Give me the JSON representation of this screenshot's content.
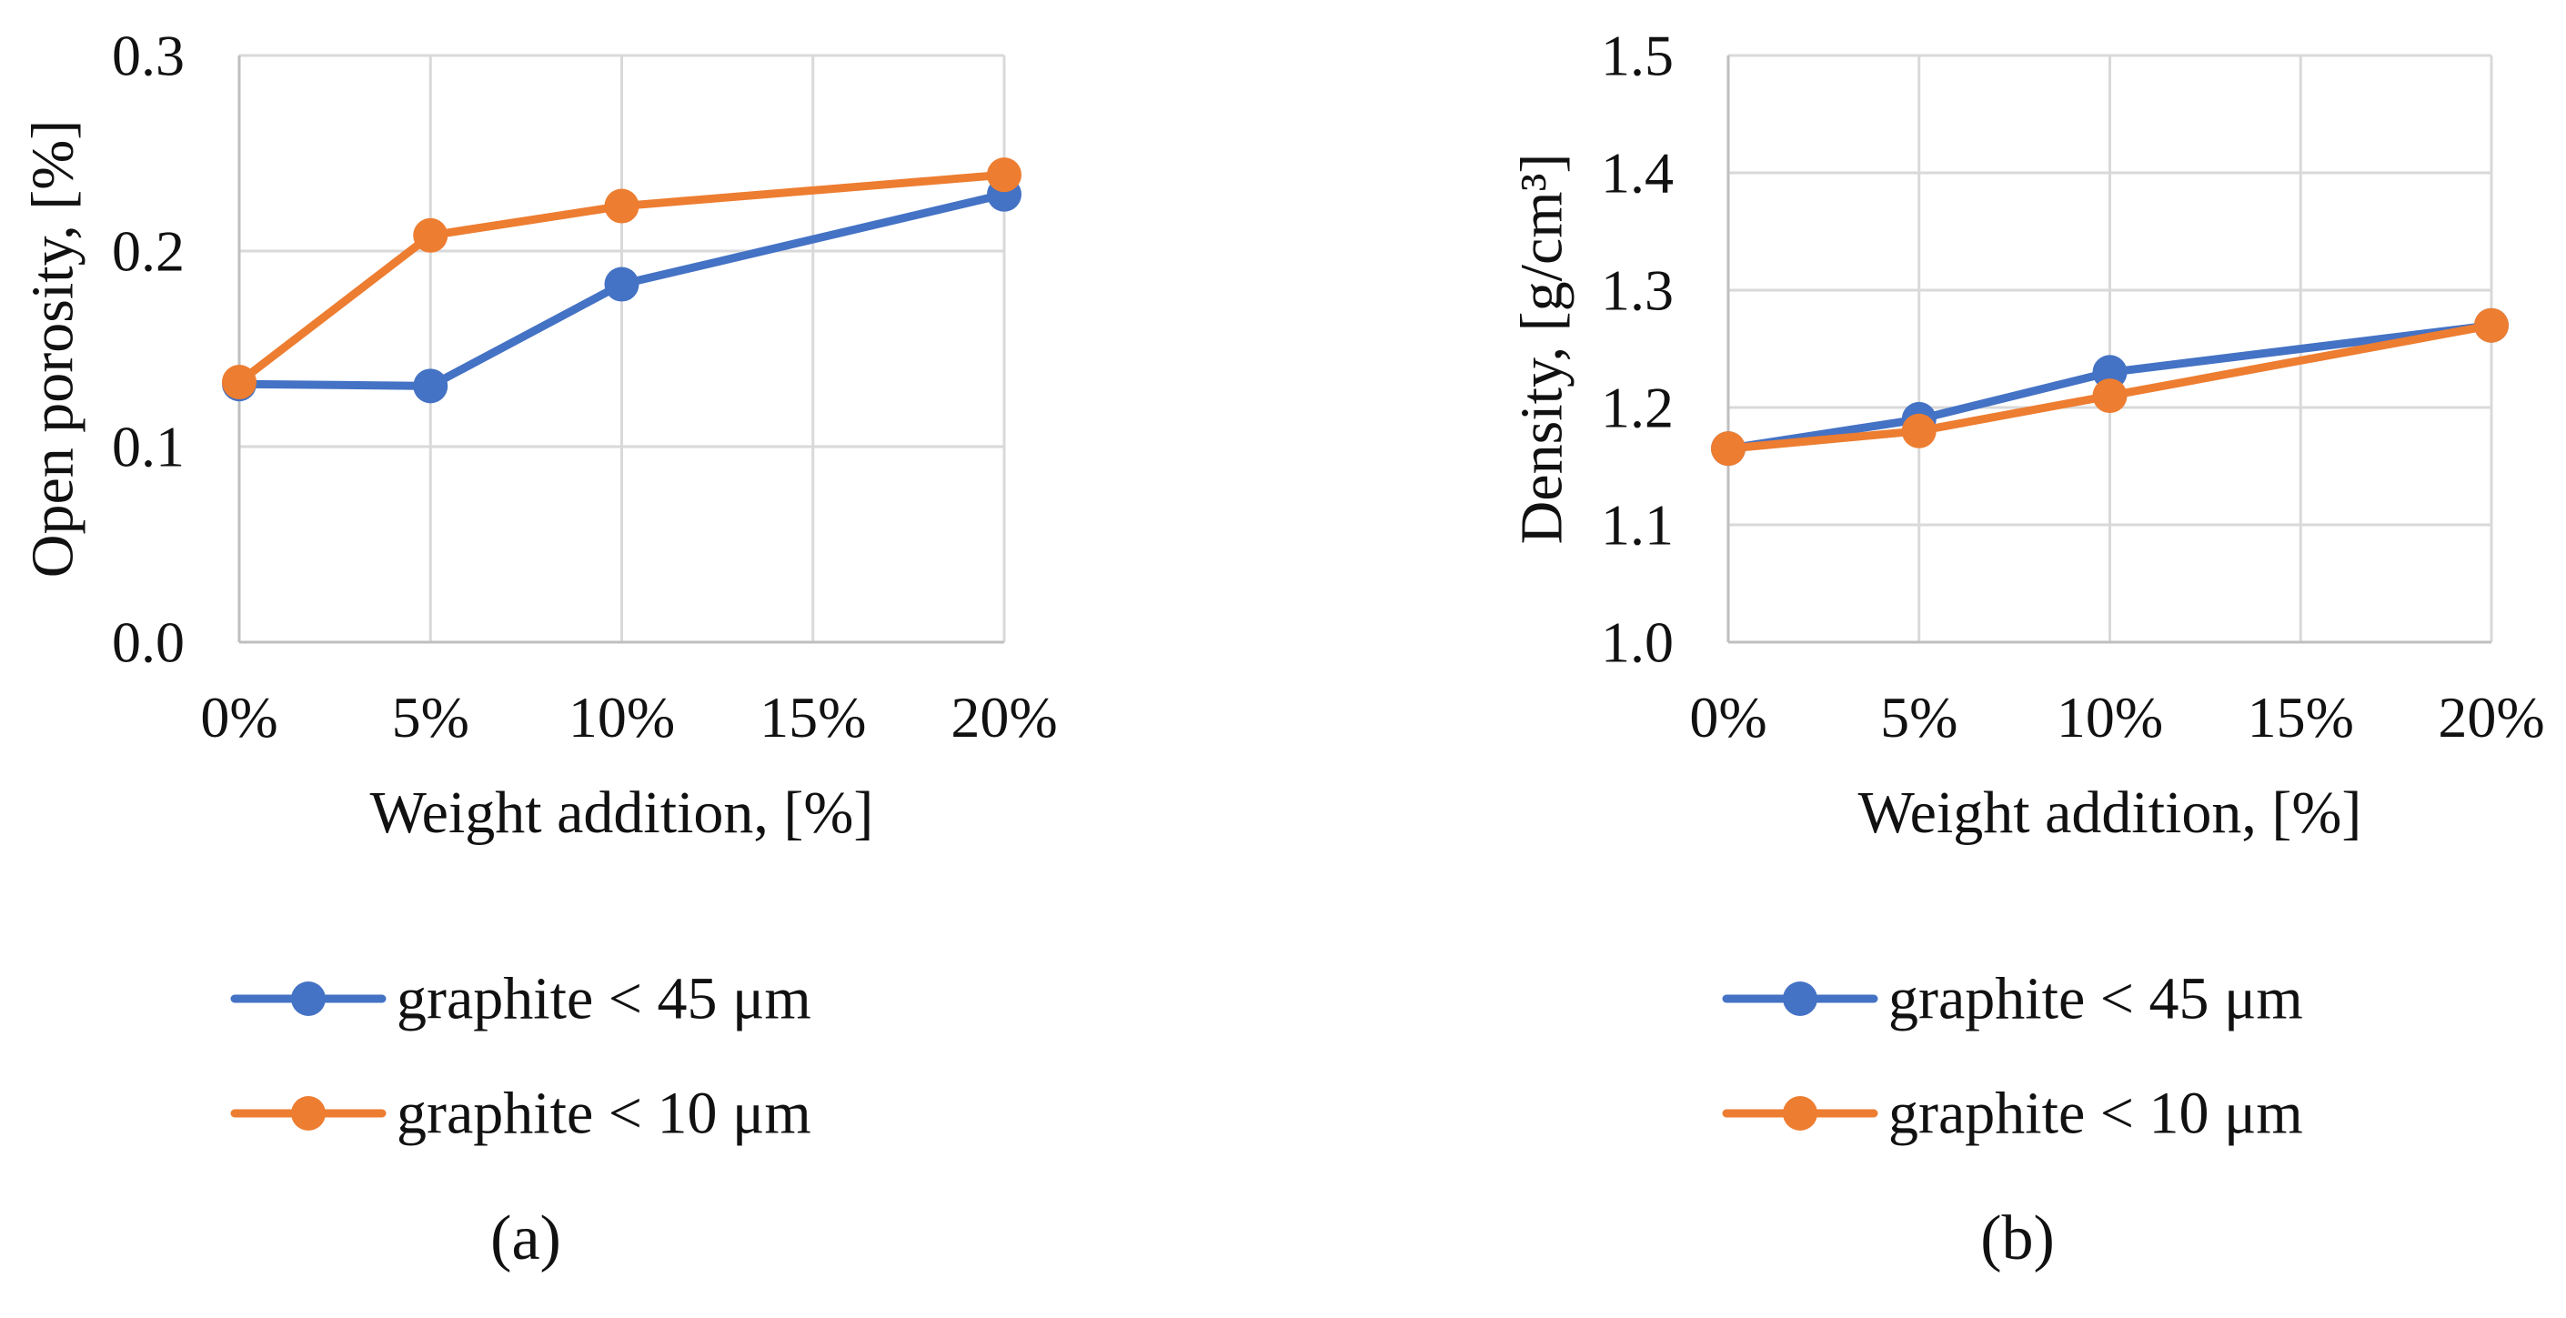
{
  "colors": {
    "series_1": "#4472C4",
    "series_2": "#ED7D31",
    "grid": "#D9D9D9",
    "axis": "#BFBFBF",
    "text": "#111111"
  },
  "chart_data": [
    {
      "type": "line",
      "panel_label": "(a)",
      "xlabel": "Weight addition, [%]",
      "ylabel": "Open porosity, [%]",
      "categories": [
        "0%",
        "5%",
        "10%",
        "15%",
        "20%"
      ],
      "x_values": [
        0,
        5,
        10,
        15,
        20
      ],
      "xlim": [
        0,
        20
      ],
      "ylim": [
        0.0,
        0.3
      ],
      "yticks": [
        0.0,
        0.1,
        0.2,
        0.3
      ],
      "ytick_labels": [
        "0.0",
        "0.1",
        "0.2",
        "0.3"
      ],
      "grid": true,
      "legend_position": "bottom",
      "series": [
        {
          "name": "graphite < 45 μm",
          "color": "#4472C4",
          "x": [
            0,
            5,
            10,
            20
          ],
          "values": [
            0.132,
            0.131,
            0.183,
            0.229
          ]
        },
        {
          "name": "graphite < 10 μm",
          "color": "#ED7D31",
          "x": [
            0,
            5,
            10,
            20
          ],
          "values": [
            0.133,
            0.208,
            0.223,
            0.239
          ]
        }
      ]
    },
    {
      "type": "line",
      "panel_label": "(b)",
      "xlabel": "Weight addition, [%]",
      "ylabel": "Density, [g/cm³]",
      "categories": [
        "0%",
        "5%",
        "10%",
        "15%",
        "20%"
      ],
      "x_values": [
        0,
        5,
        10,
        15,
        20
      ],
      "xlim": [
        0,
        20
      ],
      "ylim": [
        1.0,
        1.5
      ],
      "yticks": [
        1.0,
        1.1,
        1.2,
        1.3,
        1.4,
        1.5
      ],
      "ytick_labels": [
        "1.0",
        "1.1",
        "1.2",
        "1.3",
        "1.4",
        "1.5"
      ],
      "grid": true,
      "legend_position": "bottom",
      "series": [
        {
          "name": "graphite < 45 μm",
          "color": "#4472C4",
          "x": [
            0,
            5,
            10,
            20
          ],
          "values": [
            1.165,
            1.19,
            1.23,
            1.27
          ]
        },
        {
          "name": "graphite < 10 μm",
          "color": "#ED7D31",
          "x": [
            0,
            5,
            10,
            20
          ],
          "values": [
            1.165,
            1.18,
            1.21,
            1.27
          ]
        }
      ]
    }
  ]
}
